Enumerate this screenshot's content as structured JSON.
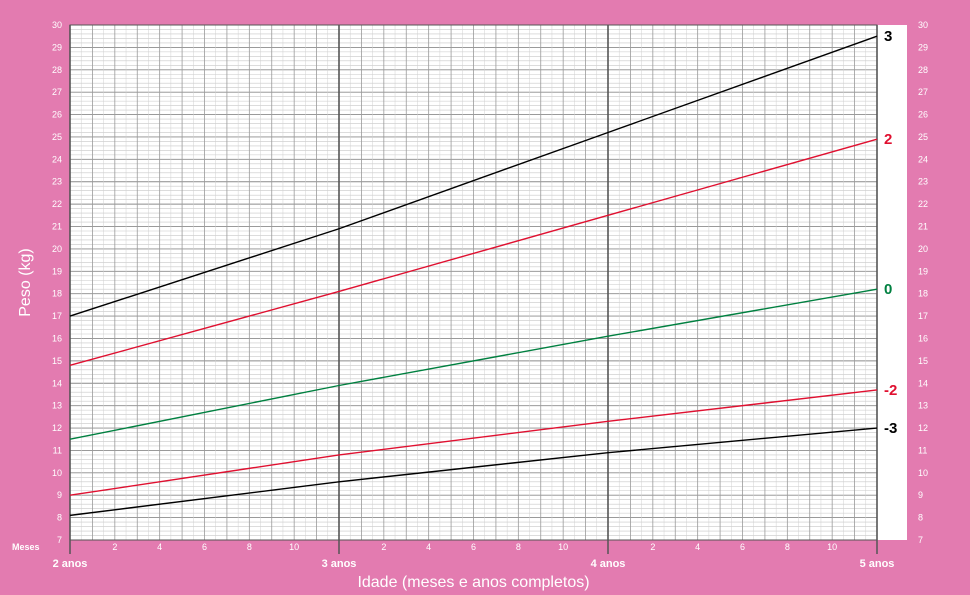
{
  "chart_data": {
    "type": "line",
    "xlabel": "Idade (meses e anos completos)",
    "ylabel": "Peso (kg)",
    "months_label": "Meses",
    "x_unit": "months",
    "xlim": [
      24,
      60
    ],
    "ylim": [
      7,
      30
    ],
    "grid": true,
    "y_ticks": [
      7,
      8,
      9,
      10,
      11,
      12,
      13,
      14,
      15,
      16,
      17,
      18,
      19,
      20,
      21,
      22,
      23,
      24,
      25,
      26,
      27,
      28,
      29,
      30
    ],
    "year_ticks": [
      {
        "month": 24,
        "label": "2 anos"
      },
      {
        "month": 36,
        "label": "3 anos"
      },
      {
        "month": 48,
        "label": "4 anos"
      },
      {
        "month": 60,
        "label": "5 anos"
      }
    ],
    "month_ticks": [
      {
        "month": 26,
        "label": "2"
      },
      {
        "month": 28,
        "label": "4"
      },
      {
        "month": 30,
        "label": "6"
      },
      {
        "month": 32,
        "label": "8"
      },
      {
        "month": 34,
        "label": "10"
      },
      {
        "month": 38,
        "label": "2"
      },
      {
        "month": 40,
        "label": "4"
      },
      {
        "month": 42,
        "label": "6"
      },
      {
        "month": 44,
        "label": "8"
      },
      {
        "month": 46,
        "label": "10"
      },
      {
        "month": 50,
        "label": "2"
      },
      {
        "month": 52,
        "label": "4"
      },
      {
        "month": 54,
        "label": "6"
      },
      {
        "month": 56,
        "label": "8"
      },
      {
        "month": 58,
        "label": "10"
      }
    ],
    "series": [
      {
        "name": "3",
        "color": "#000000",
        "x": [
          24,
          36,
          48,
          60
        ],
        "values": [
          17.0,
          20.9,
          25.2,
          29.5
        ]
      },
      {
        "name": "2",
        "color": "#e01030",
        "x": [
          24,
          36,
          48,
          60
        ],
        "values": [
          14.8,
          18.1,
          21.5,
          24.9
        ]
      },
      {
        "name": "0",
        "color": "#008040",
        "x": [
          24,
          36,
          48,
          60
        ],
        "values": [
          11.5,
          13.9,
          16.1,
          18.2
        ]
      },
      {
        "name": "-2",
        "color": "#e01030",
        "x": [
          24,
          36,
          48,
          60
        ],
        "values": [
          9.0,
          10.8,
          12.3,
          13.7
        ]
      },
      {
        "name": "-3",
        "color": "#000000",
        "x": [
          24,
          36,
          48,
          60
        ],
        "values": [
          8.1,
          9.6,
          10.9,
          12.0
        ]
      }
    ]
  }
}
